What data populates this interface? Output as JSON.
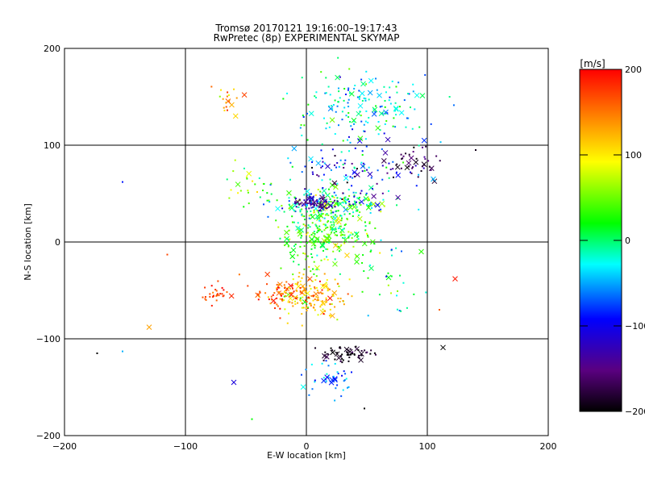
{
  "chart_data": {
    "type": "scatter",
    "title": "Tromsø 20170121 19:16:00–19:17:43",
    "subtitle": "RwPretec (8p) EXPERIMENTAL SKYMAP",
    "xlabel": "E-W location [km]",
    "ylabel": "N-S location [km]",
    "xlim": [
      -200,
      200
    ],
    "ylim": [
      -200,
      200
    ],
    "xticks": [
      -200,
      -100,
      0,
      100,
      200
    ],
    "yticks": [
      -200,
      -100,
      0,
      100,
      200
    ],
    "grid": true,
    "colorbar": {
      "label": "[m/s]",
      "range": [
        -200,
        200
      ],
      "ticks": [
        200,
        100,
        0,
        -100,
        -200
      ],
      "colors": [
        "#000000",
        "#5a0080",
        "#0000ff",
        "#00ffff",
        "#00ff00",
        "#ffff00",
        "#ff0000"
      ],
      "placement": "right"
    },
    "clusters": [
      {
        "x": 15,
        "y": 10,
        "sx": 25,
        "sy": 25,
        "n": 280,
        "v": 30,
        "sv": 45
      },
      {
        "x": 20,
        "y": 40,
        "sx": 40,
        "sy": 10,
        "n": 160,
        "v": 0,
        "sv": 70
      },
      {
        "x": 10,
        "y": 40,
        "sx": 15,
        "sy": 5,
        "n": 70,
        "v": -140,
        "sv": 25
      },
      {
        "x": 40,
        "y": 70,
        "sx": 35,
        "sy": 25,
        "n": 120,
        "v": -80,
        "sv": 80
      },
      {
        "x": 90,
        "y": 80,
        "sx": 15,
        "sy": 10,
        "n": 40,
        "v": -170,
        "sv": 30
      },
      {
        "x": 50,
        "y": 140,
        "sx": 40,
        "sy": 25,
        "n": 170,
        "v": -30,
        "sv": 50
      },
      {
        "x": 5,
        "y": -55,
        "sx": 20,
        "sy": 15,
        "n": 160,
        "v": 120,
        "sv": 50
      },
      {
        "x": -20,
        "y": -55,
        "sx": 20,
        "sy": 12,
        "n": 60,
        "v": 170,
        "sv": 30
      },
      {
        "x": 35,
        "y": -115,
        "sx": 15,
        "sy": 5,
        "n": 55,
        "v": -190,
        "sv": 20
      },
      {
        "x": 20,
        "y": -140,
        "sx": 15,
        "sy": 15,
        "n": 40,
        "v": -60,
        "sv": 40
      },
      {
        "x": -75,
        "y": -55,
        "sx": 8,
        "sy": 8,
        "n": 30,
        "v": 175,
        "sv": 25
      },
      {
        "x": -65,
        "y": 145,
        "sx": 10,
        "sy": 10,
        "n": 20,
        "v": 140,
        "sv": 40
      },
      {
        "x": -50,
        "y": 60,
        "sx": 15,
        "sy": 20,
        "n": 25,
        "v": 50,
        "sv": 50
      },
      {
        "x": 70,
        "y": -40,
        "sx": 15,
        "sy": 30,
        "n": 30,
        "v": 0,
        "sv": 60
      }
    ],
    "markers": [
      {
        "x": -130,
        "y": -88,
        "v": 130,
        "m": "x"
      },
      {
        "x": -152,
        "y": -113,
        "v": -50,
        "m": "."
      },
      {
        "x": -173,
        "y": -115,
        "v": -200,
        "m": "."
      },
      {
        "x": -152,
        "y": 62,
        "v": -90,
        "m": "."
      },
      {
        "x": -115,
        "y": -13,
        "v": 170,
        "m": "."
      },
      {
        "x": -60,
        "y": -145,
        "v": -110,
        "m": "x"
      },
      {
        "x": -45,
        "y": -183,
        "v": 20,
        "m": "."
      },
      {
        "x": 123,
        "y": -38,
        "v": 190,
        "m": "x"
      },
      {
        "x": 110,
        "y": -70,
        "v": 160,
        "m": "."
      },
      {
        "x": 113,
        "y": -109,
        "v": -200,
        "m": "x"
      },
      {
        "x": 95,
        "y": -10,
        "v": 30,
        "m": "x"
      },
      {
        "x": 140,
        "y": 95,
        "v": -190,
        "m": "."
      },
      {
        "x": 105,
        "y": 65,
        "v": -50,
        "m": "x"
      },
      {
        "x": 48,
        "y": -172,
        "v": -200,
        "m": "."
      }
    ]
  }
}
